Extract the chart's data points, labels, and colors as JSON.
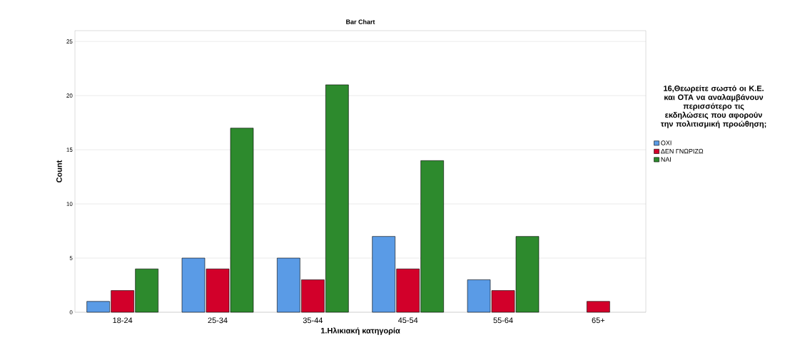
{
  "chart_data": {
    "type": "bar",
    "title": "Bar Chart",
    "xlabel": "1.Ηλικιακή κατηγορία",
    "ylabel": "Count",
    "legend_title": "16,Θεωρείτε σωστό οι Κ.Ε. και ΟΤΑ  να αναλαμβάνουν περισσότερο τις εκδηλώσεις που αφορούν την πολιτισμική προώθηση;",
    "categories": [
      "18-24",
      "25-34",
      "35-44",
      "45-54",
      "55-64",
      "65+"
    ],
    "series": [
      {
        "name": "ΟΧΙ",
        "color": "#5a9be6",
        "values": [
          1,
          5,
          5,
          7,
          3,
          null
        ]
      },
      {
        "name": "ΔΕΝ ΓΝΩΡΙΖΩ",
        "color": "#d2002a",
        "values": [
          2,
          4,
          3,
          4,
          2,
          1
        ]
      },
      {
        "name": "ΝΑΙ",
        "color": "#2d8a2d",
        "values": [
          4,
          17,
          21,
          14,
          7,
          null
        ]
      }
    ],
    "ylim": [
      0,
      26
    ],
    "yticks": [
      0,
      5,
      10,
      15,
      20,
      25
    ],
    "grid": "y",
    "legend": "right"
  }
}
